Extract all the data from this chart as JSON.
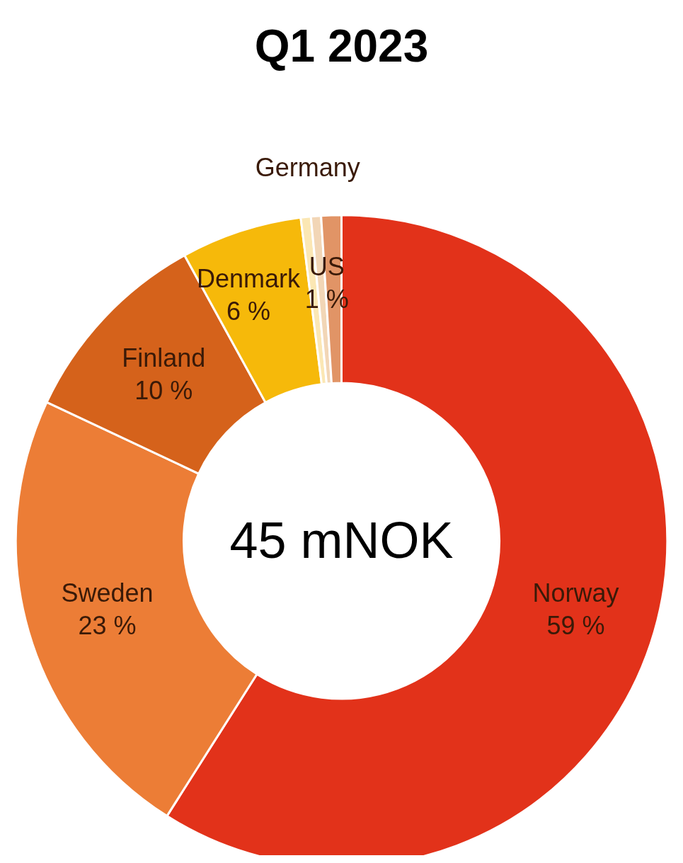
{
  "chart_data": {
    "type": "donut",
    "title": "Q1 2023",
    "categories": [
      "Norway",
      "Sweden",
      "Finland",
      "Denmark",
      "Germany",
      null,
      "US"
    ],
    "values": [
      59,
      23,
      10,
      6,
      0.5,
      0.5,
      1
    ],
    "value_labels": [
      "59 %",
      "23 %",
      "10 %",
      "6 %",
      null,
      null,
      "1 %"
    ],
    "colors": [
      "#e2321a",
      "#ec7d36",
      "#d5621b",
      "#f6b90a",
      "#fbe7b4",
      "#f2d6b6",
      "#e19466"
    ],
    "annotations": [
      "45 mNOK"
    ],
    "legend": false
  }
}
